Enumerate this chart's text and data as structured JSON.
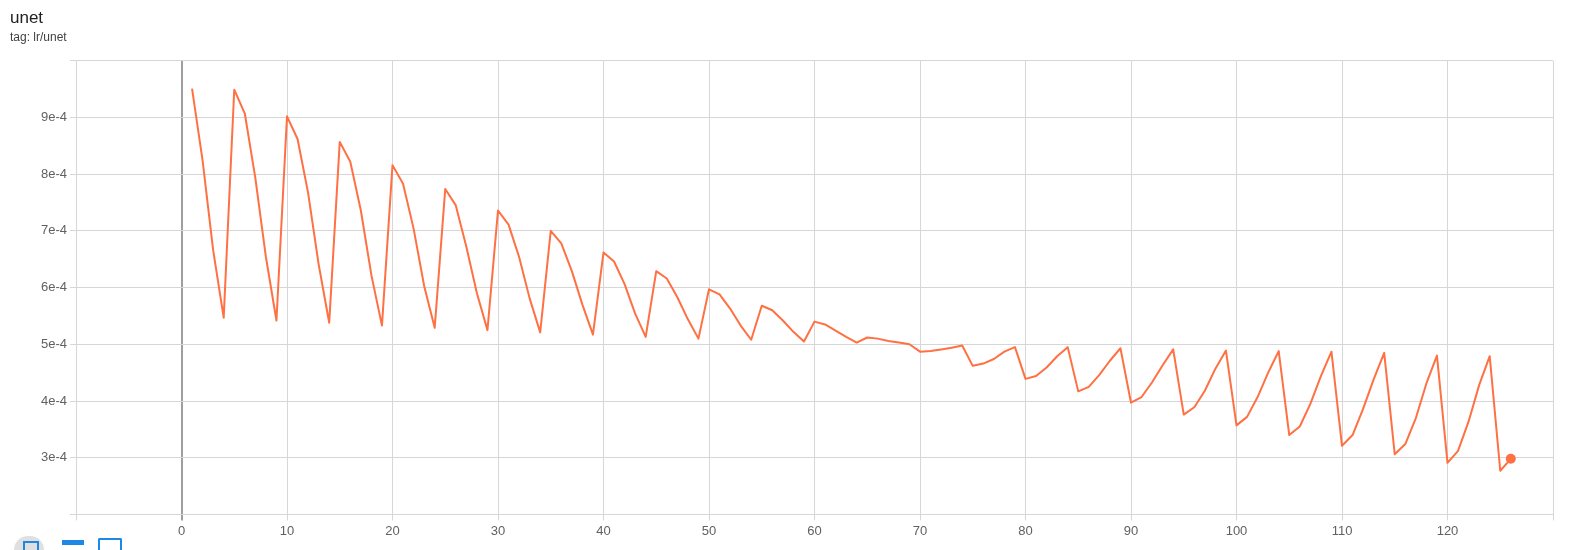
{
  "chart_data": {
    "type": "line",
    "title": "unet",
    "subtitle": "tag: lr/unet",
    "x": [
      1,
      2,
      3,
      4,
      5,
      6,
      7,
      8,
      9,
      10,
      11,
      12,
      13,
      14,
      15,
      16,
      17,
      18,
      19,
      20,
      21,
      22,
      23,
      24,
      25,
      26,
      27,
      28,
      29,
      30,
      31,
      32,
      33,
      34,
      35,
      36,
      37,
      38,
      39,
      40,
      41,
      42,
      43,
      44,
      45,
      46,
      47,
      48,
      49,
      50,
      51,
      52,
      53,
      54,
      55,
      56,
      57,
      58,
      59,
      60,
      61,
      62,
      63,
      64,
      65,
      66,
      67,
      68,
      69,
      70,
      71,
      72,
      73,
      74,
      75,
      76,
      77,
      78,
      79,
      80,
      81,
      82,
      83,
      84,
      85,
      86,
      87,
      88,
      89,
      90,
      91,
      92,
      93,
      94,
      95,
      96,
      97,
      98,
      99,
      100,
      101,
      102,
      103,
      104,
      105,
      106,
      107,
      108,
      109,
      110,
      111,
      112,
      113,
      114,
      115,
      116,
      117,
      118,
      119,
      120,
      121,
      122,
      123,
      124,
      125,
      126
    ],
    "series": [
      {
        "color": "#ff7043",
        "values": [
          0.000951,
          0.000824,
          0.000666,
          0.000547,
          0.000949,
          0.000907,
          0.000793,
          0.000654,
          0.000542,
          0.000902,
          0.000862,
          0.000767,
          0.000641,
          0.000538,
          0.000857,
          0.000822,
          0.000736,
          0.000622,
          0.000533,
          0.000816,
          0.000783,
          0.000704,
          0.000603,
          0.000529,
          0.000774,
          0.000745,
          0.000672,
          0.00059,
          0.000525,
          0.000736,
          0.000711,
          0.000654,
          0.000581,
          0.000521,
          0.0007,
          0.000678,
          0.000629,
          0.00057,
          0.000517,
          0.000662,
          0.000646,
          0.000606,
          0.000554,
          0.000513,
          0.000629,
          0.000616,
          0.000583,
          0.000544,
          0.00051,
          0.000597,
          0.000588,
          0.000563,
          0.000533,
          0.000508,
          0.000568,
          0.00056,
          0.000542,
          0.000522,
          0.000505,
          0.00054,
          0.000535,
          0.000524,
          0.000513,
          0.000503,
          0.000512,
          0.00051,
          0.000506,
          0.000503,
          0.0005,
          0.000487,
          0.000488,
          0.000491,
          0.000494,
          0.000498,
          0.000462,
          0.000466,
          0.000474,
          0.000487,
          0.000495,
          0.000439,
          0.000444,
          0.000459,
          0.000479,
          0.000495,
          0.000417,
          0.000425,
          0.000446,
          0.000471,
          0.000493,
          0.000397,
          0.000407,
          0.000433,
          0.000463,
          0.000491,
          0.000376,
          0.000389,
          0.000418,
          0.000457,
          0.000489,
          0.000357,
          0.000372,
          0.000407,
          0.00045,
          0.000488,
          0.00034,
          0.000355,
          0.000395,
          0.000444,
          0.000487,
          0.000321,
          0.00034,
          0.000386,
          0.000438,
          0.000485,
          0.000306,
          0.000324,
          0.00037,
          0.000431,
          0.00048,
          0.000291,
          0.000312,
          0.000364,
          0.000428,
          0.000479,
          0.000277,
          0.000298
        ]
      },
      {
        "type": "scatter",
        "marker": "circle",
        "color": "#ff7043",
        "values": [
          null,
          null,
          null,
          null,
          null,
          null,
          null,
          null,
          null,
          null,
          null,
          null,
          null,
          null,
          null,
          null,
          null,
          null,
          null,
          null,
          null,
          null,
          null,
          null,
          null,
          null,
          null,
          null,
          null,
          null,
          null,
          null,
          null,
          null,
          null,
          null,
          null,
          null,
          null,
          null,
          null,
          null,
          null,
          null,
          null,
          null,
          null,
          null,
          null,
          null,
          null,
          null,
          null,
          null,
          null,
          null,
          null,
          null,
          null,
          null,
          null,
          null,
          null,
          null,
          null,
          null,
          null,
          null,
          null,
          null,
          null,
          null,
          null,
          null,
          null,
          null,
          null,
          null,
          null,
          null,
          null,
          null,
          null,
          null,
          null,
          null,
          null,
          null,
          null,
          null,
          null,
          null,
          null,
          null,
          null,
          null,
          null,
          null,
          null,
          null,
          null,
          null,
          null,
          null,
          null,
          null,
          null,
          null,
          null,
          null,
          null,
          null,
          null,
          null,
          null,
          null,
          null,
          null,
          null,
          null,
          null,
          null,
          null,
          null,
          null,
          0.000298
        ]
      }
    ],
    "marker": "none",
    "line_style": "solid",
    "grid": true,
    "legend": false,
    "xlim": [
      -10,
      130
    ],
    "xticks": [
      {
        "value": -10,
        "label": null
      },
      0,
      10,
      20,
      30,
      40,
      50,
      60,
      70,
      80,
      90,
      100,
      110,
      120,
      {
        "value": 130,
        "label": null
      }
    ],
    "ylim": [
      0.0002,
      0.001
    ],
    "yticks": [
      {
        "value": 0.0002,
        "label": null
      },
      {
        "value": 0.0003,
        "label": "3e-4"
      },
      {
        "value": 0.0004,
        "label": "4e-4"
      },
      {
        "value": 0.0005,
        "label": "5e-4"
      },
      {
        "value": 0.0006,
        "label": "6e-4"
      },
      {
        "value": 0.0007,
        "label": "7e-4"
      },
      {
        "value": 0.0008,
        "label": "8e-4"
      },
      {
        "value": 0.0009,
        "label": "9e-4"
      },
      {
        "value": 0.001,
        "label": null
      }
    ]
  }
}
